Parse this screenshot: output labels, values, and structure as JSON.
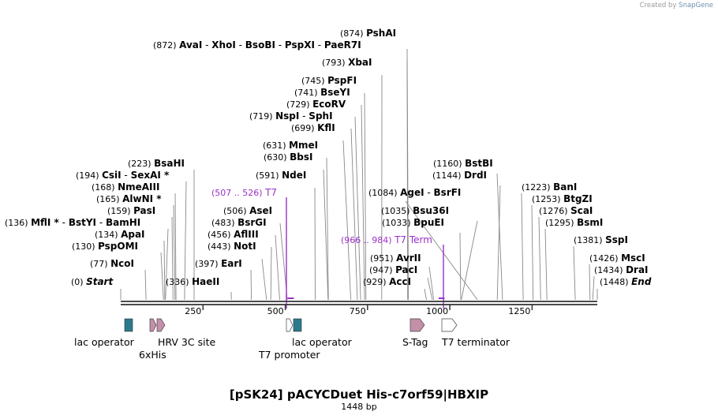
{
  "credit": {
    "prefix": "Created by",
    "brand": "SnapGene"
  },
  "title": "[pSK24] pACYCDuet His-c7orf59|HBXIP",
  "length_label": "1448 bp",
  "sequence_length": 1448,
  "axis_ticks": [
    {
      "position": 250,
      "label": "250"
    },
    {
      "position": 500,
      "label": "500"
    },
    {
      "position": 750,
      "label": "750"
    },
    {
      "position": 1000,
      "label": "1000"
    },
    {
      "position": 1250,
      "label": "1250"
    }
  ],
  "site_labels": [
    {
      "text_pos": "(874)",
      "names": [
        "PshAI"
      ],
      "position": 874
    },
    {
      "text_pos": "(872)",
      "names": [
        "AvaI",
        "XhoI",
        "BsoBI",
        "PspXI",
        "PaeR7I"
      ],
      "position": 872
    },
    {
      "text_pos": "(793)",
      "names": [
        "XbaI"
      ],
      "position": 793
    },
    {
      "text_pos": "(745)",
      "names": [
        "PspFI"
      ],
      "position": 745
    },
    {
      "text_pos": "(741)",
      "names": [
        "BseYI"
      ],
      "position": 741
    },
    {
      "text_pos": "(729)",
      "names": [
        "EcoRV"
      ],
      "position": 729
    },
    {
      "text_pos": "(719)",
      "names": [
        "NspI",
        "SphI"
      ],
      "position": 719
    },
    {
      "text_pos": "(699)",
      "names": [
        "KflI"
      ],
      "position": 699
    },
    {
      "text_pos": "(631)",
      "names": [
        "MmeI"
      ],
      "position": 631
    },
    {
      "text_pos": "(630)",
      "names": [
        "BbsI"
      ],
      "position": 630
    },
    {
      "text_pos": "(591)",
      "names": [
        "NdeI"
      ],
      "position": 591
    },
    {
      "text_pos": "(506)",
      "names": [
        "AseI"
      ],
      "position": 506
    },
    {
      "text_pos": "(483)",
      "names": [
        "BsrGI"
      ],
      "position": 483
    },
    {
      "text_pos": "(456)",
      "names": [
        "AflIII"
      ],
      "position": 456
    },
    {
      "text_pos": "(443)",
      "names": [
        "NotI"
      ],
      "position": 443
    },
    {
      "text_pos": "(397)",
      "names": [
        "EarI"
      ],
      "position": 397
    },
    {
      "text_pos": "(336)",
      "names": [
        "HaeII"
      ],
      "position": 336
    },
    {
      "text_pos": "(223)",
      "names": [
        "BsaHI"
      ],
      "position": 223
    },
    {
      "text_pos": "(194)",
      "names": [
        "CsiI",
        "SexAI *"
      ],
      "position": 194
    },
    {
      "text_pos": "(168)",
      "names": [
        "NmeAIII"
      ],
      "position": 168
    },
    {
      "text_pos": "(165)",
      "names": [
        "AlwNI *"
      ],
      "position": 165
    },
    {
      "text_pos": "(159)",
      "names": [
        "PasI"
      ],
      "position": 159
    },
    {
      "text_pos": "(136)",
      "names": [
        "MflI *",
        "BstYI",
        "BamHI"
      ],
      "position": 136
    },
    {
      "text_pos": "(134)",
      "names": [
        "ApaI"
      ],
      "position": 134
    },
    {
      "text_pos": "(130)",
      "names": [
        "PspOMI"
      ],
      "position": 130
    },
    {
      "text_pos": "(77)",
      "names": [
        "NcoI"
      ],
      "position": 77
    },
    {
      "text_pos": "(0)",
      "names": [
        "Start"
      ],
      "position": 0
    },
    {
      "text_pos": "(1084)",
      "names": [
        "AgeI",
        "BsrFI"
      ],
      "position": 1084
    },
    {
      "text_pos": "(1035)",
      "names": [
        "Bsu36I"
      ],
      "position": 1035
    },
    {
      "text_pos": "(1033)",
      "names": [
        "BpuEI"
      ],
      "position": 1033
    },
    {
      "text_pos": "(951)",
      "names": [
        "AvrII"
      ],
      "position": 951
    },
    {
      "text_pos": "(947)",
      "names": [
        "PacI"
      ],
      "position": 947
    },
    {
      "text_pos": "(929)",
      "names": [
        "AccI"
      ],
      "position": 929
    },
    {
      "text_pos": "(1160)",
      "names": [
        "BstBI"
      ],
      "position": 1160
    },
    {
      "text_pos": "(1144)",
      "names": [
        "DrdI"
      ],
      "position": 1144
    },
    {
      "text_pos": "(1223)",
      "names": [
        "BanI"
      ],
      "position": 1223
    },
    {
      "text_pos": "(1253)",
      "names": [
        "BtgZI"
      ],
      "position": 1253
    },
    {
      "text_pos": "(1276)",
      "names": [
        "ScaI"
      ],
      "position": 1276
    },
    {
      "text_pos": "(1295)",
      "names": [
        "BsmI"
      ],
      "position": 1295
    },
    {
      "text_pos": "(1381)",
      "names": [
        "SspI"
      ],
      "position": 1381
    },
    {
      "text_pos": "(1426)",
      "names": [
        "MscI"
      ],
      "position": 1426
    },
    {
      "text_pos": "(1434)",
      "names": [
        "DraI"
      ],
      "position": 1434
    },
    {
      "text_pos": "(1448)",
      "names": [
        "End"
      ],
      "position": 1448
    }
  ],
  "primers": [
    {
      "range": "(507 .. 526)",
      "name": "T7",
      "start": 507,
      "end": 526
    },
    {
      "range": "(966 .. 984)",
      "name": "T7 Term",
      "start": 966,
      "end": 984
    }
  ],
  "features": [
    {
      "name": "lac operator",
      "start": 10,
      "end": 30,
      "color": "#2a7a8c"
    },
    {
      "name": "6xHis",
      "start": 93,
      "end": 111,
      "color": "#c48fa8"
    },
    {
      "name": "HRV 3C site",
      "start": 111,
      "end": 135,
      "color": "#c48fa8"
    },
    {
      "name": "lac operator",
      "start": 526,
      "end": 550,
      "color": "#2a7a8c"
    },
    {
      "name": "T7 promoter",
      "start": 506,
      "end": 524,
      "color": "#ffffff"
    },
    {
      "name": "S-Tag",
      "start": 900,
      "end": 945,
      "color": "#c48fa8"
    },
    {
      "name": "T7 terminator",
      "start": 1003,
      "end": 1051,
      "color": "#ffffff"
    }
  ],
  "colors": {
    "backbone": "#333333",
    "primer": "#9b30c8",
    "label_line": "#888888"
  }
}
